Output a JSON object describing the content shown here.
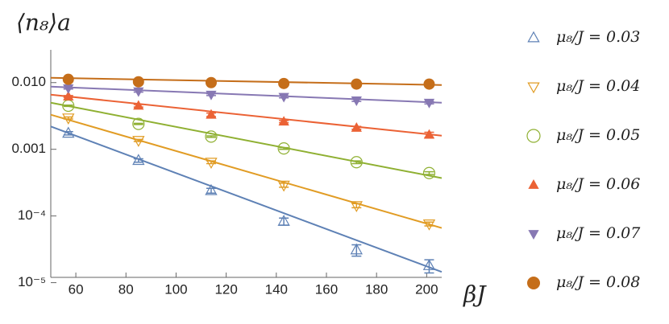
{
  "chart_data": {
    "type": "scatter",
    "y_label": "⟨n₈⟩a",
    "x_label": "βJ",
    "y_log": true,
    "xlim": [
      50,
      206
    ],
    "ylim": [
      1.2e-05,
      0.031
    ],
    "xticks": [
      60,
      80,
      100,
      120,
      140,
      160,
      180,
      200
    ],
    "yticks": [
      {
        "value": 0.01,
        "label": "0.010"
      },
      0.001,
      {
        "value": 0.0001,
        "label": "10⁻⁴"
      },
      {
        "value": 1e-05,
        "label": "10⁻⁵"
      }
    ],
    "x": [
      57,
      85,
      114,
      143,
      172,
      201
    ],
    "series": [
      {
        "name": "μ₈/J = 0.03",
        "color": "#5e81b5",
        "marker": "triangle-open",
        "values": [
          0.00174,
          0.00068,
          0.00024,
          8.3e-05,
          3.1e-05,
          1.8e-05
        ],
        "errors": [
          0.0001,
          4e-05,
          2e-05,
          1e-05,
          6e-06,
          4e-06
        ],
        "fit": {
          "x": [
            50,
            206
          ],
          "values": [
            0.0022,
            1.45e-05
          ]
        }
      },
      {
        "name": "μ₈/J = 0.04",
        "color": "#e19c24",
        "marker": "triangle-down-open",
        "values": [
          0.00295,
          0.00136,
          0.00064,
          0.00029,
          0.000143,
          7.6e-05
        ],
        "errors": [
          0.0001,
          5e-05,
          3e-05,
          2e-05,
          1e-05,
          5e-06
        ],
        "fit": {
          "x": [
            50,
            206
          ],
          "values": [
            0.0033,
            6.6e-05
          ]
        }
      },
      {
        "name": "μ₈/J = 0.05",
        "color": "#8fb032",
        "marker": "circle-open",
        "values": [
          0.0045,
          0.0024,
          0.00155,
          0.00103,
          0.00064,
          0.00044
        ],
        "errors": [
          0.0001,
          5e-05,
          4e-05,
          3e-05,
          3e-05,
          2e-05
        ],
        "fit": {
          "x": [
            50,
            206
          ],
          "values": [
            0.005,
            0.00037
          ]
        }
      },
      {
        "name": "μ₈/J = 0.06",
        "color": "#eb6235",
        "marker": "triangle",
        "values": [
          0.0062,
          0.0045,
          0.0033,
          0.0026,
          0.0021,
          0.00165
        ],
        "errors": [
          0.0002,
          0.0002,
          0.0002,
          0.0001,
          0.0001,
          0.00015
        ],
        "fit": {
          "x": [
            50,
            206
          ],
          "values": [
            0.0066,
            0.0016
          ]
        }
      },
      {
        "name": "μ₈/J = 0.07",
        "color": "#8778b3",
        "marker": "triangle-down",
        "values": [
          0.0082,
          0.0074,
          0.0066,
          0.0061,
          0.0054,
          0.005
        ],
        "errors": [
          0.0002,
          0.0002,
          0.0002,
          0.0002,
          0.0002,
          0.0002
        ],
        "fit": {
          "x": [
            50,
            206
          ],
          "values": [
            0.0087,
            0.005
          ]
        }
      },
      {
        "name": "μ₈/J = 0.08",
        "color": "#c56e1a",
        "marker": "circle",
        "values": [
          0.0112,
          0.0103,
          0.01,
          0.0097,
          0.0095,
          0.0095
        ],
        "errors": [
          0.0002,
          0.0002,
          0.0002,
          0.0002,
          0.0002,
          0.0002
        ],
        "fit": {
          "x": [
            50,
            206
          ],
          "values": [
            0.0118,
            0.0092
          ]
        }
      }
    ]
  }
}
